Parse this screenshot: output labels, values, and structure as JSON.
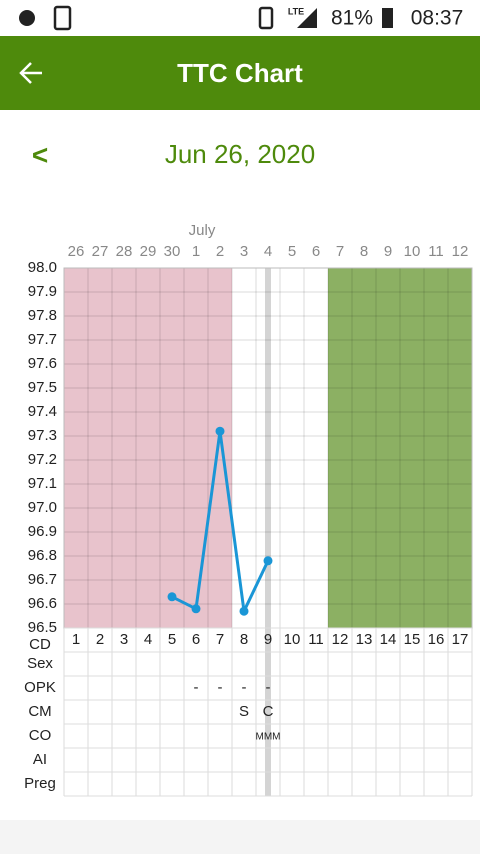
{
  "status_bar": {
    "network": "LTE",
    "battery": "81%",
    "time": "08:37"
  },
  "app_bar": {
    "title": "TTC Chart"
  },
  "date_nav": {
    "prev": "<",
    "date": "Jun 26, 2020"
  },
  "chart_data": {
    "type": "line",
    "month_label": "July",
    "categories": [
      "26",
      "27",
      "28",
      "29",
      "30",
      "1",
      "2",
      "3",
      "4",
      "5",
      "6",
      "7",
      "8",
      "9",
      "10",
      "11",
      "12"
    ],
    "values": [
      null,
      null,
      null,
      null,
      96.63,
      96.58,
      97.32,
      96.57,
      96.78,
      null,
      null,
      null,
      null,
      null,
      null,
      null,
      null
    ],
    "color": "#1a96d6",
    "ylim": [
      96.5,
      98.0
    ],
    "yticks": [
      96.5,
      96.6,
      96.7,
      96.8,
      96.9,
      {
        "value": 97,
        "label": "97.0"
      },
      97.1,
      97.2,
      97.3,
      97.4,
      97.5,
      97.6,
      97.7,
      97.8,
      97.9,
      {
        "value": 98,
        "label": "98.0"
      }
    ],
    "grid": true,
    "bands": [
      {
        "from_cd": 1,
        "to_cd": 7,
        "color": "#e8c3cc"
      },
      {
        "from_cd": 12,
        "to_cd": 17,
        "color": "#8cb063"
      }
    ],
    "today_cd": 9,
    "cycle_day_label": "CD",
    "cycle_days": [
      1,
      2,
      3,
      4,
      5,
      6,
      7,
      8,
      9,
      10,
      11,
      12,
      13,
      14,
      15,
      16,
      17
    ],
    "rows": [
      {
        "label": "Sex",
        "entries": []
      },
      {
        "label": "OPK",
        "entries": [
          {
            "cd": 6,
            "text": "-"
          },
          {
            "cd": 7,
            "text": "-"
          },
          {
            "cd": 8,
            "text": "-"
          },
          {
            "cd": 9,
            "text": "-"
          }
        ]
      },
      {
        "label": "CM",
        "entries": [
          {
            "cd": 8,
            "text": "S"
          },
          {
            "cd": 9,
            "text": "C"
          }
        ]
      },
      {
        "label": "CO",
        "entries": [
          {
            "cd": 9,
            "text": "MMM",
            "small": true
          }
        ]
      },
      {
        "label": "AI",
        "entries": []
      },
      {
        "label": "Preg",
        "entries": []
      }
    ]
  }
}
